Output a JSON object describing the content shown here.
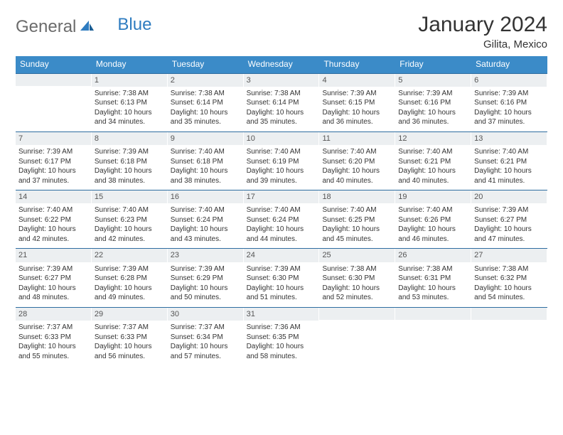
{
  "logo": {
    "part1": "General",
    "part2": "Blue"
  },
  "title": {
    "month": "January 2024",
    "location": "Gilita, Mexico"
  },
  "colors": {
    "header_bg": "#3b8bc8",
    "header_text": "#ffffff",
    "daynum_bg": "#eceff1",
    "week_border": "#2e6da0",
    "text": "#333333"
  },
  "layout": {
    "columns": 7,
    "rows": 5
  },
  "weekdays": [
    "Sunday",
    "Monday",
    "Tuesday",
    "Wednesday",
    "Thursday",
    "Friday",
    "Saturday"
  ],
  "weeks": [
    [
      {
        "day": "",
        "sunrise": "",
        "sunset": "",
        "daylight": ""
      },
      {
        "day": "1",
        "sunrise": "Sunrise: 7:38 AM",
        "sunset": "Sunset: 6:13 PM",
        "daylight": "Daylight: 10 hours and 34 minutes."
      },
      {
        "day": "2",
        "sunrise": "Sunrise: 7:38 AM",
        "sunset": "Sunset: 6:14 PM",
        "daylight": "Daylight: 10 hours and 35 minutes."
      },
      {
        "day": "3",
        "sunrise": "Sunrise: 7:38 AM",
        "sunset": "Sunset: 6:14 PM",
        "daylight": "Daylight: 10 hours and 35 minutes."
      },
      {
        "day": "4",
        "sunrise": "Sunrise: 7:39 AM",
        "sunset": "Sunset: 6:15 PM",
        "daylight": "Daylight: 10 hours and 36 minutes."
      },
      {
        "day": "5",
        "sunrise": "Sunrise: 7:39 AM",
        "sunset": "Sunset: 6:16 PM",
        "daylight": "Daylight: 10 hours and 36 minutes."
      },
      {
        "day": "6",
        "sunrise": "Sunrise: 7:39 AM",
        "sunset": "Sunset: 6:16 PM",
        "daylight": "Daylight: 10 hours and 37 minutes."
      }
    ],
    [
      {
        "day": "7",
        "sunrise": "Sunrise: 7:39 AM",
        "sunset": "Sunset: 6:17 PM",
        "daylight": "Daylight: 10 hours and 37 minutes."
      },
      {
        "day": "8",
        "sunrise": "Sunrise: 7:39 AM",
        "sunset": "Sunset: 6:18 PM",
        "daylight": "Daylight: 10 hours and 38 minutes."
      },
      {
        "day": "9",
        "sunrise": "Sunrise: 7:40 AM",
        "sunset": "Sunset: 6:18 PM",
        "daylight": "Daylight: 10 hours and 38 minutes."
      },
      {
        "day": "10",
        "sunrise": "Sunrise: 7:40 AM",
        "sunset": "Sunset: 6:19 PM",
        "daylight": "Daylight: 10 hours and 39 minutes."
      },
      {
        "day": "11",
        "sunrise": "Sunrise: 7:40 AM",
        "sunset": "Sunset: 6:20 PM",
        "daylight": "Daylight: 10 hours and 40 minutes."
      },
      {
        "day": "12",
        "sunrise": "Sunrise: 7:40 AM",
        "sunset": "Sunset: 6:21 PM",
        "daylight": "Daylight: 10 hours and 40 minutes."
      },
      {
        "day": "13",
        "sunrise": "Sunrise: 7:40 AM",
        "sunset": "Sunset: 6:21 PM",
        "daylight": "Daylight: 10 hours and 41 minutes."
      }
    ],
    [
      {
        "day": "14",
        "sunrise": "Sunrise: 7:40 AM",
        "sunset": "Sunset: 6:22 PM",
        "daylight": "Daylight: 10 hours and 42 minutes."
      },
      {
        "day": "15",
        "sunrise": "Sunrise: 7:40 AM",
        "sunset": "Sunset: 6:23 PM",
        "daylight": "Daylight: 10 hours and 42 minutes."
      },
      {
        "day": "16",
        "sunrise": "Sunrise: 7:40 AM",
        "sunset": "Sunset: 6:24 PM",
        "daylight": "Daylight: 10 hours and 43 minutes."
      },
      {
        "day": "17",
        "sunrise": "Sunrise: 7:40 AM",
        "sunset": "Sunset: 6:24 PM",
        "daylight": "Daylight: 10 hours and 44 minutes."
      },
      {
        "day": "18",
        "sunrise": "Sunrise: 7:40 AM",
        "sunset": "Sunset: 6:25 PM",
        "daylight": "Daylight: 10 hours and 45 minutes."
      },
      {
        "day": "19",
        "sunrise": "Sunrise: 7:40 AM",
        "sunset": "Sunset: 6:26 PM",
        "daylight": "Daylight: 10 hours and 46 minutes."
      },
      {
        "day": "20",
        "sunrise": "Sunrise: 7:39 AM",
        "sunset": "Sunset: 6:27 PM",
        "daylight": "Daylight: 10 hours and 47 minutes."
      }
    ],
    [
      {
        "day": "21",
        "sunrise": "Sunrise: 7:39 AM",
        "sunset": "Sunset: 6:27 PM",
        "daylight": "Daylight: 10 hours and 48 minutes."
      },
      {
        "day": "22",
        "sunrise": "Sunrise: 7:39 AM",
        "sunset": "Sunset: 6:28 PM",
        "daylight": "Daylight: 10 hours and 49 minutes."
      },
      {
        "day": "23",
        "sunrise": "Sunrise: 7:39 AM",
        "sunset": "Sunset: 6:29 PM",
        "daylight": "Daylight: 10 hours and 50 minutes."
      },
      {
        "day": "24",
        "sunrise": "Sunrise: 7:39 AM",
        "sunset": "Sunset: 6:30 PM",
        "daylight": "Daylight: 10 hours and 51 minutes."
      },
      {
        "day": "25",
        "sunrise": "Sunrise: 7:38 AM",
        "sunset": "Sunset: 6:30 PM",
        "daylight": "Daylight: 10 hours and 52 minutes."
      },
      {
        "day": "26",
        "sunrise": "Sunrise: 7:38 AM",
        "sunset": "Sunset: 6:31 PM",
        "daylight": "Daylight: 10 hours and 53 minutes."
      },
      {
        "day": "27",
        "sunrise": "Sunrise: 7:38 AM",
        "sunset": "Sunset: 6:32 PM",
        "daylight": "Daylight: 10 hours and 54 minutes."
      }
    ],
    [
      {
        "day": "28",
        "sunrise": "Sunrise: 7:37 AM",
        "sunset": "Sunset: 6:33 PM",
        "daylight": "Daylight: 10 hours and 55 minutes."
      },
      {
        "day": "29",
        "sunrise": "Sunrise: 7:37 AM",
        "sunset": "Sunset: 6:33 PM",
        "daylight": "Daylight: 10 hours and 56 minutes."
      },
      {
        "day": "30",
        "sunrise": "Sunrise: 7:37 AM",
        "sunset": "Sunset: 6:34 PM",
        "daylight": "Daylight: 10 hours and 57 minutes."
      },
      {
        "day": "31",
        "sunrise": "Sunrise: 7:36 AM",
        "sunset": "Sunset: 6:35 PM",
        "daylight": "Daylight: 10 hours and 58 minutes."
      },
      {
        "day": "",
        "sunrise": "",
        "sunset": "",
        "daylight": ""
      },
      {
        "day": "",
        "sunrise": "",
        "sunset": "",
        "daylight": ""
      },
      {
        "day": "",
        "sunrise": "",
        "sunset": "",
        "daylight": ""
      }
    ]
  ]
}
